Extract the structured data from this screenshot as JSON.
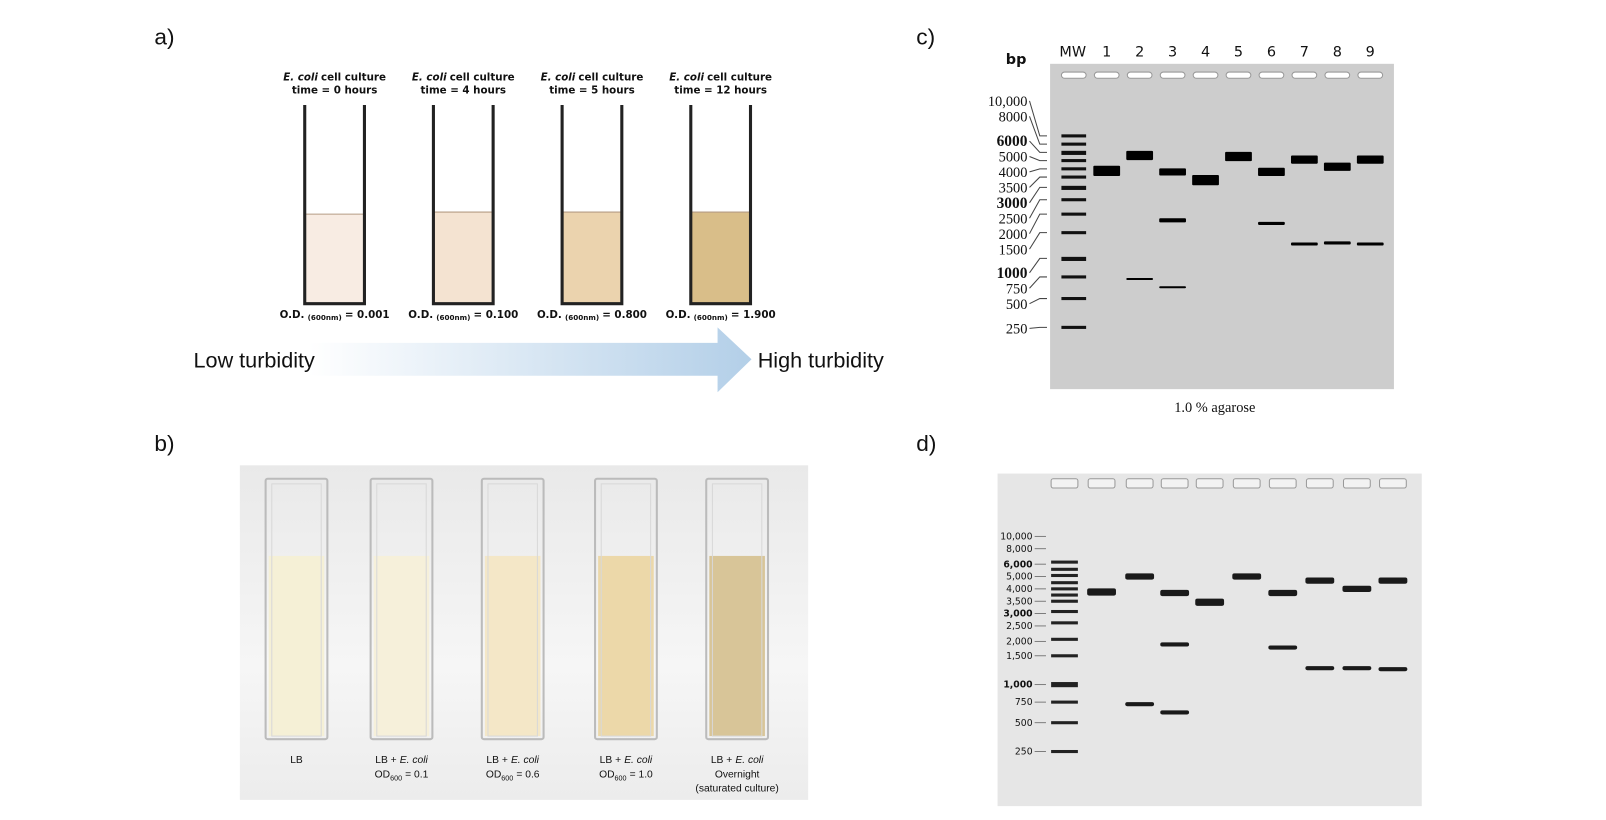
{
  "panel_a": {
    "label": "a)",
    "tubes": [
      {
        "organism": "E. coli",
        "caption": "cell culture",
        "time": "time = 0 hours",
        "od_label": "O.D.",
        "od_sub": "(600nm)",
        "od_value": "= 0.001"
      },
      {
        "organism": "E. coli",
        "caption": "cell culture",
        "time": "time = 4 hours",
        "od_label": "O.D.",
        "od_sub": "(600nm)",
        "od_value": "= 0.100"
      },
      {
        "organism": "E. coli",
        "caption": "cell culture",
        "time": "time = 5 hours",
        "od_label": "O.D.",
        "od_sub": "(600nm)",
        "od_value": "= 0.800"
      },
      {
        "organism": "E. coli",
        "caption": "cell culture",
        "time": "time = 12 hours",
        "od_label": "O.D.",
        "od_sub": "(600nm)",
        "od_value": "= 1.900"
      }
    ],
    "low": "Low turbidity",
    "high": "High turbidity"
  },
  "panel_b": {
    "label": "b)",
    "cuvettes": [
      {
        "name": "LB"
      },
      {
        "prefix": "LB +",
        "organism": "E. coli",
        "od": "OD",
        "od_sub": "600",
        "od_value": "= 0.1"
      },
      {
        "prefix": "LB +",
        "organism": "E. coli",
        "od": "OD",
        "od_sub": "600",
        "od_value": "= 0.6"
      },
      {
        "prefix": "LB +",
        "organism": "E. coli",
        "od": "OD",
        "od_sub": "600",
        "od_value": "= 1.0"
      },
      {
        "prefix": "LB +",
        "organism": "E. coli",
        "line2": "Overnight",
        "line3": "(saturated culture)"
      }
    ]
  },
  "panel_c": {
    "label": "c)",
    "unit": "bp",
    "mw": "MW",
    "lanes": [
      "1",
      "2",
      "3",
      "4",
      "5",
      "6",
      "7",
      "8",
      "9"
    ],
    "ladder": [
      "10,000",
      "8000",
      "6000",
      "5000",
      "4000",
      "3500",
      "3000",
      "2500",
      "2000",
      "1500",
      "1000",
      "750",
      "500",
      "250"
    ],
    "caption": "1.0 % agarose"
  },
  "panel_d": {
    "label": "d)",
    "ladder": [
      "10,000",
      "8,000",
      "6,000",
      "5,000",
      "4,000",
      "3,500",
      "3,000",
      "2,500",
      "2,000",
      "1,500",
      "1,000",
      "750",
      "500",
      "250"
    ]
  }
}
